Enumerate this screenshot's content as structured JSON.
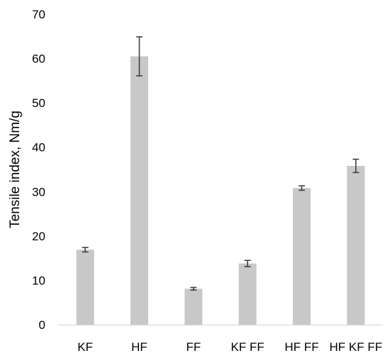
{
  "chart_data": {
    "type": "bar",
    "title": "",
    "xlabel": "",
    "ylabel": "Tensile index, Nm/g",
    "ylim": [
      0,
      70
    ],
    "yticks": [
      0,
      10,
      20,
      30,
      40,
      50,
      60,
      70
    ],
    "grid": false,
    "legend": "none",
    "categories": [
      "KF",
      "HF",
      "FF",
      "KF FF",
      "HF FF",
      "HF KF FF"
    ],
    "values": [
      16.9,
      60.5,
      8.1,
      13.8,
      30.8,
      35.8
    ],
    "error": [
      0.5,
      4.4,
      0.3,
      0.7,
      0.5,
      1.5
    ],
    "colors": {
      "bar": "#c8c8c8",
      "error_bar": "#404040",
      "axis": "#d9d9d9"
    }
  }
}
